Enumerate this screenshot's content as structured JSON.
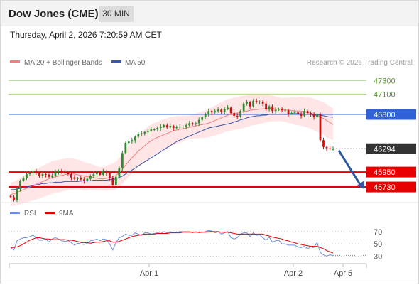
{
  "header": {
    "title": "Dow Jones (CME)",
    "timeframe": "30 MIN"
  },
  "timestamp": "Thursday, April 2, 2026 7:20:59 AM CET",
  "legend": {
    "ma20": "MA 20 + Bollinger Bands",
    "ma50": "MA 50",
    "credit": "Research © 2026 Trading Central"
  },
  "rsi_legend": {
    "rsi": "RSI",
    "ma9": "9MA"
  },
  "colors": {
    "bull": "#2e8b2e",
    "bear": "#cc1111",
    "resistance": "#a6d784",
    "support": "#e60000",
    "pivot": "#2f62d6",
    "price": "#333333",
    "ma20": "#f08080",
    "ma50": "#3558a8",
    "band": "#ffe0e0",
    "rsi": "#6a8fdc",
    "rsi_ma": "#e30000",
    "arrow": "#2c5aa0"
  },
  "chart_data": [
    {
      "type": "candlestick",
      "ylim": [
        45500,
        47450
      ],
      "x_ticks": [
        "Apr 1",
        "Apr 2",
        "Apr 5"
      ],
      "levels": [
        {
          "label": "47300",
          "value": 47300,
          "kind": "resistance"
        },
        {
          "label": "47100",
          "value": 47100,
          "kind": "resistance"
        },
        {
          "label": "46800",
          "value": 46800,
          "kind": "pivot"
        },
        {
          "label": "46294",
          "value": 46294,
          "kind": "price"
        },
        {
          "label": "45950",
          "value": 45950,
          "kind": "support"
        },
        {
          "label": "45730",
          "value": 45730,
          "kind": "support"
        }
      ],
      "close": [
        45580,
        45540,
        45700,
        45820,
        45860,
        45920,
        45940,
        45960,
        45930,
        45890,
        45920,
        45910,
        45880,
        45900,
        45950,
        45970,
        45940,
        45930,
        45920,
        45870,
        45850,
        45860,
        45840,
        45820,
        45850,
        45890,
        45920,
        45940,
        45910,
        45960,
        45930,
        45860,
        45760,
        45880,
        46010,
        46230,
        46380,
        46400,
        46420,
        46470,
        46510,
        46520,
        46540,
        46560,
        46580,
        46580,
        46600,
        46620,
        46640,
        46610,
        46630,
        46600,
        46610,
        46620,
        46620,
        46640,
        46670,
        46660,
        46670,
        46720,
        46760,
        46800,
        46850,
        46830,
        46850,
        46870,
        46840,
        46880,
        46900,
        46820,
        46780,
        46770,
        46850,
        46960,
        46980,
        46920,
        47000,
        46980,
        46990,
        46960,
        46870,
        46920,
        46850,
        46870,
        46880,
        46860,
        46860,
        46810,
        46820,
        46830,
        46810,
        46780,
        46850,
        46820,
        46800,
        46760,
        46800,
        46420,
        46320,
        46300,
        46290,
        46290
      ],
      "ma20": [
        45620,
        45630,
        45650,
        45670,
        45690,
        45710,
        45730,
        45750,
        45770,
        45790,
        45810,
        45830,
        45850,
        45870,
        45880,
        45890,
        45900,
        45910,
        45920,
        45920,
        45920,
        45910,
        45900,
        45890,
        45880,
        45880,
        45870,
        45860,
        45850,
        45850,
        45860,
        45870,
        45880,
        45900,
        45940,
        45990,
        46050,
        46110,
        46160,
        46210,
        46260,
        46300,
        46340,
        46380,
        46410,
        46440,
        46460,
        46480,
        46500,
        46520,
        46540,
        46560,
        46570,
        46580,
        46590,
        46600,
        46610,
        46620,
        46630,
        46640,
        46650,
        46660,
        46670,
        46690,
        46710,
        46730,
        46750,
        46770,
        46790,
        46800,
        46810,
        46820,
        46830,
        46840,
        46850,
        46860,
        46870,
        46870,
        46880,
        46880,
        46890,
        46890,
        46890,
        46880,
        46880,
        46870,
        46870,
        46860,
        46860,
        46850,
        46850,
        46850,
        46840,
        46830,
        46820,
        46800,
        46780,
        46760,
        46740,
        46710,
        46680,
        46650
      ],
      "ma50": [
        45690,
        45690,
        45700,
        45710,
        45720,
        45730,
        45740,
        45750,
        45760,
        45770,
        45780,
        45780,
        45790,
        45790,
        45800,
        45800,
        45800,
        45810,
        45810,
        45810,
        45810,
        45810,
        45820,
        45820,
        45820,
        45820,
        45830,
        45830,
        45830,
        45830,
        45830,
        45840,
        45840,
        45850,
        45870,
        45890,
        45920,
        45950,
        45980,
        46010,
        46040,
        46070,
        46100,
        46130,
        46160,
        46190,
        46220,
        46250,
        46280,
        46310,
        46340,
        46370,
        46400,
        46420,
        46440,
        46460,
        46480,
        46500,
        46520,
        46540,
        46560,
        46580,
        46600,
        46610,
        46620,
        46630,
        46640,
        46650,
        46660,
        46670,
        46690,
        46700,
        46720,
        46730,
        46750,
        46760,
        46770,
        46780,
        46780,
        46790,
        46790,
        46800,
        46800,
        46800,
        46800,
        46800,
        46800,
        46810,
        46810,
        46810,
        46810,
        46810,
        46800,
        46800,
        46800,
        46790,
        46790,
        46790,
        46780,
        46770,
        46760,
        46760
      ]
    },
    {
      "type": "line",
      "ylim": [
        20,
        85
      ],
      "y_ticks": [
        "70",
        "50",
        "30"
      ],
      "y_tick_values": [
        70,
        50,
        30
      ],
      "rsi": [
        44,
        40,
        55,
        58,
        60,
        60,
        62,
        64,
        60,
        56,
        56,
        58,
        53,
        58,
        60,
        58,
        55,
        54,
        55,
        52,
        48,
        51,
        50,
        49,
        51,
        55,
        56,
        58,
        55,
        58,
        57,
        50,
        40,
        52,
        60,
        62,
        66,
        64,
        64,
        68,
        66,
        64,
        68,
        68,
        66,
        67,
        68,
        67,
        70,
        68,
        70,
        68,
        69,
        70,
        70,
        70,
        70,
        68,
        70,
        68,
        69,
        70,
        72,
        71,
        68,
        70,
        66,
        68,
        70,
        60,
        58,
        60,
        66,
        68,
        68,
        62,
        68,
        64,
        65,
        60,
        56,
        61,
        53,
        55,
        56,
        50,
        50,
        48,
        48,
        48,
        45,
        44,
        46,
        42,
        45,
        44,
        52,
        36,
        32,
        30,
        32,
        31
      ],
      "rsi_ma": [
        44,
        44,
        45,
        47,
        50,
        53,
        56,
        58,
        60,
        60,
        59,
        58,
        58,
        57,
        57,
        57,
        57,
        57,
        56,
        56,
        55,
        54,
        52,
        52,
        52,
        51,
        52,
        53,
        53,
        54,
        55,
        55,
        53,
        53,
        54,
        56,
        58,
        60,
        62,
        63,
        64,
        65,
        66,
        66,
        66,
        66,
        67,
        67,
        67,
        67,
        68,
        68,
        68,
        68,
        69,
        69,
        69,
        69,
        69,
        69,
        69,
        69,
        70,
        70,
        70,
        70,
        69,
        69,
        69,
        68,
        67,
        66,
        66,
        66,
        66,
        66,
        66,
        66,
        66,
        66,
        64,
        63,
        61,
        60,
        59,
        58,
        56,
        55,
        53,
        52,
        50,
        49,
        48,
        47,
        46,
        46,
        46,
        44,
        42,
        39,
        37,
        35
      ]
    }
  ]
}
